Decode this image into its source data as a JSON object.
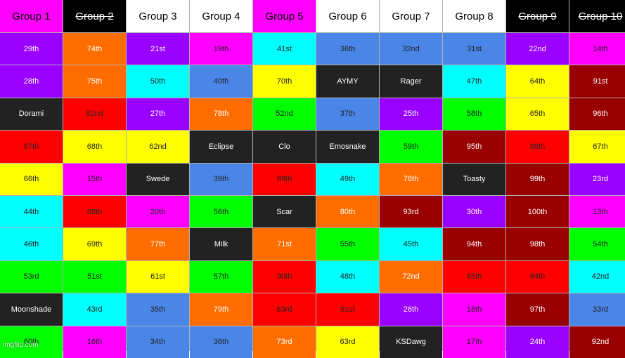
{
  "colors": {
    "purple": "#9900ff",
    "orange": "#ff6d01",
    "magenta": "#ff00ff",
    "cyan": "#00ffff",
    "blue": "#4a86e8",
    "dark": "#222222",
    "yellow": "#ffff00",
    "red": "#ff0000",
    "green": "#00ff00",
    "darkred": "#990000",
    "white": "#ffffff",
    "black": "#000000"
  },
  "headers": [
    {
      "label": "Group 1",
      "bg": "#ff00ff",
      "fg": "#000000",
      "struck": false
    },
    {
      "label": "Group 2",
      "bg": "#000000",
      "fg": "#ffffff",
      "struck": true
    },
    {
      "label": "Group 3",
      "bg": "#ffffff",
      "fg": "#000000",
      "struck": false
    },
    {
      "label": "Group 4",
      "bg": "#ffffff",
      "fg": "#000000",
      "struck": false
    },
    {
      "label": "Group 5",
      "bg": "#ff00ff",
      "fg": "#000000",
      "struck": false
    },
    {
      "label": "Group 6",
      "bg": "#ffffff",
      "fg": "#000000",
      "struck": false
    },
    {
      "label": "Group 7",
      "bg": "#ffffff",
      "fg": "#000000",
      "struck": false
    },
    {
      "label": "Group 8",
      "bg": "#ffffff",
      "fg": "#000000",
      "struck": false
    },
    {
      "label": "Group 9",
      "bg": "#000000",
      "fg": "#ffffff",
      "struck": true
    },
    {
      "label": "Group 10",
      "bg": "#000000",
      "fg": "#ffffff",
      "struck": true
    }
  ],
  "rows": [
    [
      {
        "text": "29th",
        "color": "purple"
      },
      {
        "text": "74th",
        "color": "orange"
      },
      {
        "text": "21st",
        "color": "purple"
      },
      {
        "text": "19th",
        "color": "magenta"
      },
      {
        "text": "41st",
        "color": "cyan"
      },
      {
        "text": "36th",
        "color": "blue"
      },
      {
        "text": "32nd",
        "color": "blue"
      },
      {
        "text": "31st",
        "color": "blue"
      },
      {
        "text": "22nd",
        "color": "purple"
      },
      {
        "text": "14th",
        "color": "magenta"
      }
    ],
    [
      {
        "text": "28th",
        "color": "purple"
      },
      {
        "text": "75th",
        "color": "orange"
      },
      {
        "text": "50th",
        "color": "cyan"
      },
      {
        "text": "40th",
        "color": "blue"
      },
      {
        "text": "70th",
        "color": "yellow"
      },
      {
        "text": "AYMY",
        "color": "dark"
      },
      {
        "text": "Rager",
        "color": "dark"
      },
      {
        "text": "47th",
        "color": "cyan"
      },
      {
        "text": "64th",
        "color": "yellow"
      },
      {
        "text": "91st",
        "color": "darkred"
      }
    ],
    [
      {
        "text": "Dorami",
        "color": "dark"
      },
      {
        "text": "82nd",
        "color": "red"
      },
      {
        "text": "27th",
        "color": "purple"
      },
      {
        "text": "78th",
        "color": "orange"
      },
      {
        "text": "52nd",
        "color": "green"
      },
      {
        "text": "37th",
        "color": "blue"
      },
      {
        "text": "25th",
        "color": "purple"
      },
      {
        "text": "58th",
        "color": "green"
      },
      {
        "text": "65th",
        "color": "yellow"
      },
      {
        "text": "96th",
        "color": "darkred"
      }
    ],
    [
      {
        "text": "87th",
        "color": "red"
      },
      {
        "text": "68th",
        "color": "yellow"
      },
      {
        "text": "62nd",
        "color": "yellow"
      },
      {
        "text": "Eclipse",
        "color": "dark"
      },
      {
        "text": "Clo",
        "color": "dark"
      },
      {
        "text": "Emosnake",
        "color": "dark"
      },
      {
        "text": "59th",
        "color": "green"
      },
      {
        "text": "95th",
        "color": "darkred"
      },
      {
        "text": "86th",
        "color": "red"
      },
      {
        "text": "67th",
        "color": "yellow"
      }
    ],
    [
      {
        "text": "66th",
        "color": "yellow"
      },
      {
        "text": "15th",
        "color": "magenta"
      },
      {
        "text": "Swede",
        "color": "dark"
      },
      {
        "text": "39th",
        "color": "blue"
      },
      {
        "text": "89th",
        "color": "red"
      },
      {
        "text": "49th",
        "color": "cyan"
      },
      {
        "text": "76th",
        "color": "orange"
      },
      {
        "text": "Toasty",
        "color": "dark"
      },
      {
        "text": "99th",
        "color": "darkred"
      },
      {
        "text": "23rd",
        "color": "purple"
      }
    ],
    [
      {
        "text": "44th",
        "color": "cyan"
      },
      {
        "text": "88th",
        "color": "red"
      },
      {
        "text": "20th",
        "color": "magenta"
      },
      {
        "text": "56th",
        "color": "green"
      },
      {
        "text": "Scar",
        "color": "dark"
      },
      {
        "text": "80th",
        "color": "orange"
      },
      {
        "text": "93rd",
        "color": "darkred"
      },
      {
        "text": "30th",
        "color": "purple"
      },
      {
        "text": "100th",
        "color": "darkred"
      },
      {
        "text": "13th",
        "color": "magenta"
      }
    ],
    [
      {
        "text": "46th",
        "color": "cyan"
      },
      {
        "text": "69th",
        "color": "yellow"
      },
      {
        "text": "77th",
        "color": "orange"
      },
      {
        "text": "Milk",
        "color": "dark"
      },
      {
        "text": "71st",
        "color": "orange"
      },
      {
        "text": "55th",
        "color": "green"
      },
      {
        "text": "45th",
        "color": "cyan"
      },
      {
        "text": "94th",
        "color": "darkred"
      },
      {
        "text": "98th",
        "color": "darkred"
      },
      {
        "text": "54th",
        "color": "green"
      }
    ],
    [
      {
        "text": "53rd",
        "color": "green"
      },
      {
        "text": "51st",
        "color": "green"
      },
      {
        "text": "61st",
        "color": "yellow"
      },
      {
        "text": "57th",
        "color": "green"
      },
      {
        "text": "90th",
        "color": "red"
      },
      {
        "text": "48th",
        "color": "cyan"
      },
      {
        "text": "72nd",
        "color": "orange"
      },
      {
        "text": "85th",
        "color": "red"
      },
      {
        "text": "84th",
        "color": "red"
      },
      {
        "text": "42nd",
        "color": "cyan"
      }
    ],
    [
      {
        "text": "Moonshade",
        "color": "dark"
      },
      {
        "text": "43rd",
        "color": "cyan"
      },
      {
        "text": "35th",
        "color": "blue"
      },
      {
        "text": "79th",
        "color": "orange"
      },
      {
        "text": "83rd",
        "color": "red"
      },
      {
        "text": "81st",
        "color": "red"
      },
      {
        "text": "26th",
        "color": "purple"
      },
      {
        "text": "18th",
        "color": "magenta"
      },
      {
        "text": "97th",
        "color": "darkred"
      },
      {
        "text": "33rd",
        "color": "blue"
      }
    ],
    [
      {
        "text": "60th",
        "color": "green"
      },
      {
        "text": "16th",
        "color": "magenta"
      },
      {
        "text": "34th",
        "color": "blue"
      },
      {
        "text": "38th",
        "color": "blue"
      },
      {
        "text": "73rd",
        "color": "orange"
      },
      {
        "text": "63rd",
        "color": "yellow"
      },
      {
        "text": "KSDawg",
        "color": "dark"
      },
      {
        "text": "17th",
        "color": "magenta"
      },
      {
        "text": "24th",
        "color": "purple"
      },
      {
        "text": "92nd",
        "color": "darkred"
      }
    ]
  ],
  "text_colors": {
    "purple": "#ffffff",
    "orange": "#ffffff",
    "magenta": "#222222",
    "cyan": "#222222",
    "blue": "#222222",
    "dark": "#ffffff",
    "yellow": "#222222",
    "red": "#222222",
    "green": "#222222",
    "darkred": "#ffffff"
  },
  "watermark": "imgflip.com"
}
